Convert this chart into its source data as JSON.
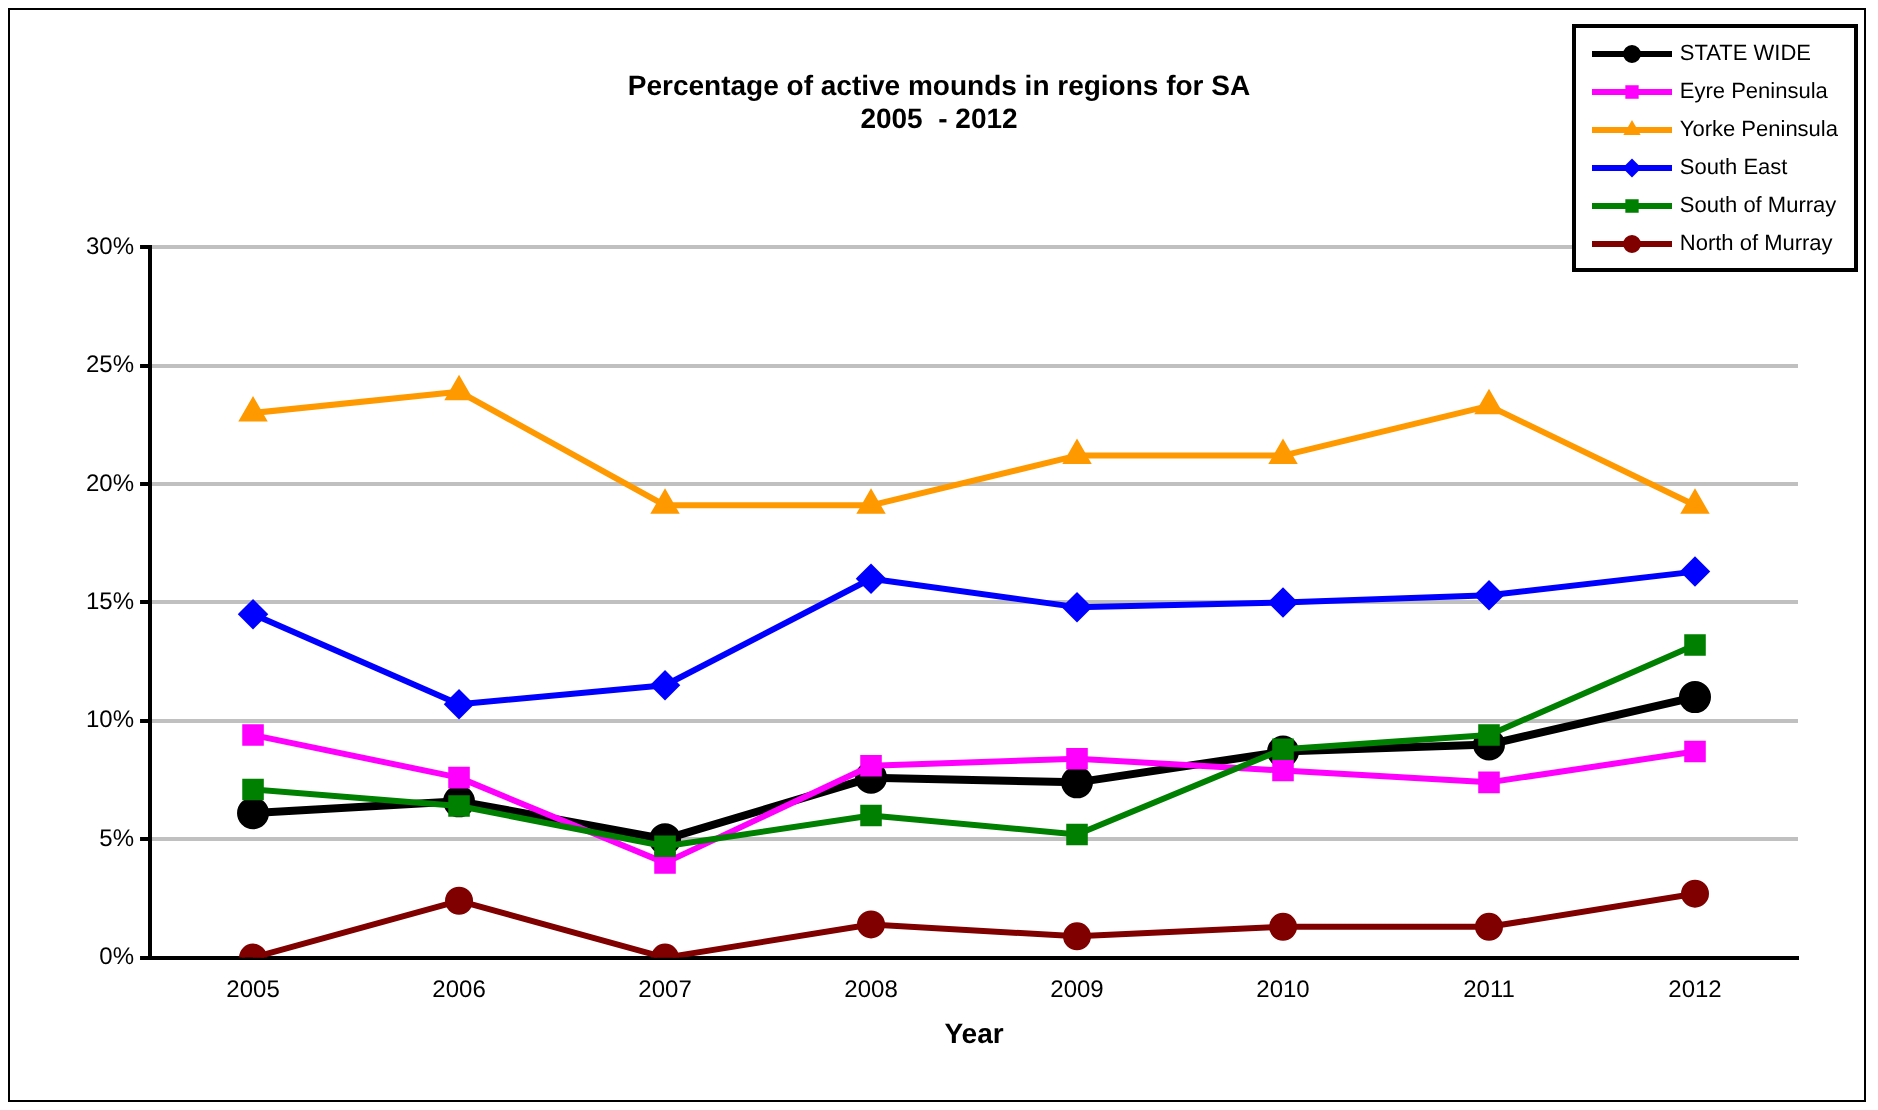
{
  "chart_data": {
    "type": "line",
    "title": "Percentage of active mounds in regions for SA",
    "subtitle": "2005  - 2012",
    "xlabel": "Year",
    "categories": [
      "2005",
      "2006",
      "2007",
      "2008",
      "2009",
      "2010",
      "2011",
      "2012"
    ],
    "ylim": [
      0,
      30
    ],
    "yticks": [
      {
        "value": 0,
        "label": "0%"
      },
      {
        "value": 5,
        "label": "5%"
      },
      {
        "value": 10,
        "label": "10%"
      },
      {
        "value": 15,
        "label": "15%"
      },
      {
        "value": 20,
        "label": "20%"
      },
      {
        "value": 25,
        "label": "25%"
      },
      {
        "value": 30,
        "label": "30%"
      }
    ],
    "grid": "y",
    "legend": "top right",
    "series": [
      {
        "name": "STATE WIDE",
        "color": "#000000",
        "marker": "circle",
        "values": [
          6.1,
          6.6,
          5.0,
          7.6,
          7.4,
          8.7,
          9.0,
          11.0
        ]
      },
      {
        "name": "Eyre Peninsula",
        "color": "#ff00ff",
        "marker": "square",
        "values": [
          9.4,
          7.6,
          4.0,
          8.1,
          8.4,
          7.9,
          7.4,
          8.7
        ]
      },
      {
        "name": "Yorke Peninsula",
        "color": "#ff9900",
        "marker": "triangle",
        "values": [
          23.0,
          23.9,
          19.1,
          19.1,
          21.2,
          21.2,
          23.3,
          19.1
        ]
      },
      {
        "name": "South East",
        "color": "#0000ff",
        "marker": "diamond",
        "values": [
          14.5,
          10.7,
          11.5,
          16.0,
          14.8,
          15.0,
          15.3,
          16.3
        ]
      },
      {
        "name": "South of Murray",
        "color": "#008000",
        "marker": "square",
        "values": [
          7.1,
          6.4,
          4.7,
          6.0,
          5.2,
          8.8,
          9.4,
          13.2
        ]
      },
      {
        "name": "North of Murray",
        "color": "#800000",
        "marker": "circle",
        "values": [
          0,
          2.4,
          0,
          1.4,
          0.9,
          1.3,
          1.3,
          2.7
        ]
      }
    ]
  }
}
